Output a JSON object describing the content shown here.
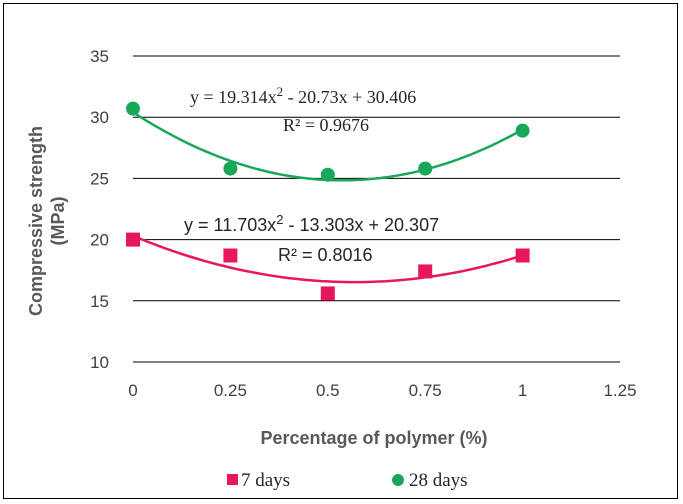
{
  "chart_data": {
    "type": "scatter",
    "xlabel": "Percentage of polymer (%)",
    "ylabel_lines": [
      "Compressive strength",
      "(MPa)"
    ],
    "xlim": [
      0,
      1.25
    ],
    "ylim": [
      10,
      35
    ],
    "x_ticks": [
      0,
      0.25,
      0.5,
      0.75,
      1,
      1.25
    ],
    "x_tick_labels": [
      "0",
      "0.25",
      "0.5",
      "0.75",
      "1",
      "1.25"
    ],
    "y_ticks": [
      10,
      15,
      20,
      25,
      30,
      35
    ],
    "y_tick_labels": [
      "10",
      "15",
      "20",
      "25",
      "30",
      "35"
    ],
    "grid": "horizontal",
    "legend_position": "bottom",
    "series": [
      {
        "name": "7 days",
        "marker": "square",
        "color": "#E8175D",
        "x": [
          0,
          0.25,
          0.5,
          0.75,
          1
        ],
        "y": [
          20.0,
          18.7,
          15.6,
          17.4,
          18.7
        ],
        "trendline": {
          "type": "polynomial",
          "coefficients": [
            11.703,
            -13.303,
            20.307
          ],
          "equation_parts": [
            "y = 11.703x",
            "2",
            " - 13.303x + 20.307"
          ],
          "r2_text": "R² = 0.8016"
        }
      },
      {
        "name": "28 days",
        "marker": "circle",
        "color": "#19A85A",
        "x": [
          0,
          0.25,
          0.5,
          0.75,
          1
        ],
        "y": [
          30.7,
          25.8,
          25.3,
          25.8,
          28.9
        ],
        "trendline": {
          "type": "polynomial",
          "coefficients": [
            19.314,
            -20.73,
            30.406
          ],
          "equation_parts": [
            "y = 19.314x",
            "2",
            " - 20.73x + 30.406"
          ],
          "r2_text": "R² = 0.9676"
        }
      }
    ]
  }
}
